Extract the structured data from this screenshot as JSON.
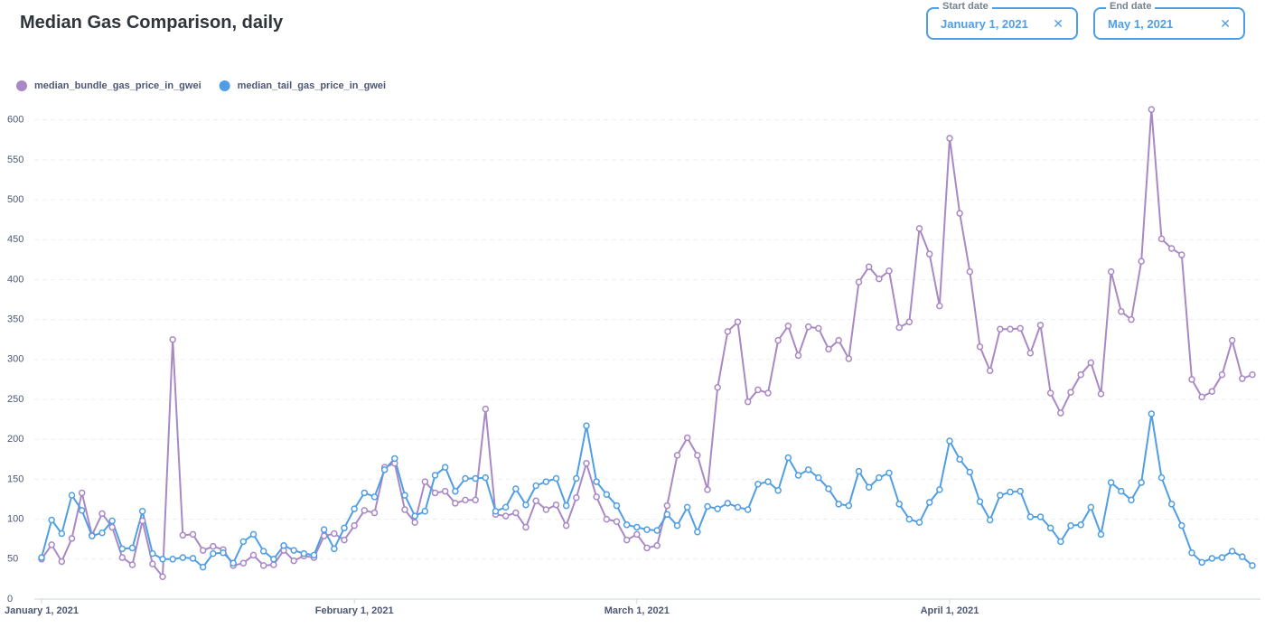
{
  "chart_data": {
    "type": "line",
    "title": "Median Gas Comparison, daily",
    "x": [
      "2021-01-01",
      "2021-01-02",
      "2021-01-03",
      "2021-01-04",
      "2021-01-05",
      "2021-01-06",
      "2021-01-07",
      "2021-01-08",
      "2021-01-09",
      "2021-01-10",
      "2021-01-11",
      "2021-01-12",
      "2021-01-13",
      "2021-01-14",
      "2021-01-15",
      "2021-01-16",
      "2021-01-17",
      "2021-01-18",
      "2021-01-19",
      "2021-01-20",
      "2021-01-21",
      "2021-01-22",
      "2021-01-23",
      "2021-01-24",
      "2021-01-25",
      "2021-01-26",
      "2021-01-27",
      "2021-01-28",
      "2021-01-29",
      "2021-01-30",
      "2021-01-31",
      "2021-02-01",
      "2021-02-02",
      "2021-02-03",
      "2021-02-04",
      "2021-02-05",
      "2021-02-06",
      "2021-02-07",
      "2021-02-08",
      "2021-02-09",
      "2021-02-10",
      "2021-02-11",
      "2021-02-12",
      "2021-02-13",
      "2021-02-14",
      "2021-02-15",
      "2021-02-16",
      "2021-02-17",
      "2021-02-18",
      "2021-02-19",
      "2021-02-20",
      "2021-02-21",
      "2021-02-22",
      "2021-02-23",
      "2021-02-24",
      "2021-02-25",
      "2021-02-26",
      "2021-02-27",
      "2021-02-28",
      "2021-03-01",
      "2021-03-02",
      "2021-03-03",
      "2021-03-04",
      "2021-03-05",
      "2021-03-06",
      "2021-03-07",
      "2021-03-08",
      "2021-03-09",
      "2021-03-10",
      "2021-03-11",
      "2021-03-12",
      "2021-03-13",
      "2021-03-14",
      "2021-03-15",
      "2021-03-16",
      "2021-03-17",
      "2021-03-18",
      "2021-03-19",
      "2021-03-20",
      "2021-03-21",
      "2021-03-22",
      "2021-03-23",
      "2021-03-24",
      "2021-03-25",
      "2021-03-26",
      "2021-03-27",
      "2021-03-28",
      "2021-03-29",
      "2021-03-30",
      "2021-03-31",
      "2021-04-01",
      "2021-04-02",
      "2021-04-03",
      "2021-04-04",
      "2021-04-05",
      "2021-04-06",
      "2021-04-07",
      "2021-04-08",
      "2021-04-09",
      "2021-04-10",
      "2021-04-11",
      "2021-04-12",
      "2021-04-13",
      "2021-04-14",
      "2021-04-15",
      "2021-04-16",
      "2021-04-17",
      "2021-04-18",
      "2021-04-19",
      "2021-04-20",
      "2021-04-21",
      "2021-04-22",
      "2021-04-23",
      "2021-04-24",
      "2021-04-25",
      "2021-04-26",
      "2021-04-27",
      "2021-04-28",
      "2021-04-29",
      "2021-04-30",
      "2021-05-01"
    ],
    "series": [
      {
        "name": "median_bundle_gas_price_in_gwei",
        "color": "#a989c5",
        "values": [
          50,
          68,
          47,
          76,
          133,
          80,
          107,
          90,
          52,
          43,
          98,
          44,
          28,
          325,
          80,
          81,
          61,
          66,
          62,
          42,
          45,
          55,
          42,
          43,
          61,
          48,
          54,
          52,
          79,
          82,
          74,
          92,
          111,
          108,
          165,
          170,
          112,
          96,
          147,
          133,
          135,
          120,
          124,
          124,
          238,
          106,
          104,
          108,
          90,
          123,
          112,
          118,
          92,
          127,
          170,
          128,
          100,
          97,
          74,
          81,
          64,
          67,
          117,
          180,
          202,
          180,
          137,
          265,
          335,
          347,
          247,
          262,
          258,
          324,
          342,
          305,
          341,
          339,
          313,
          324,
          301,
          397,
          416,
          401,
          411,
          340,
          347,
          464,
          432,
          367,
          577,
          483,
          410,
          316,
          286,
          338,
          338,
          339,
          308,
          343,
          258,
          233,
          259,
          281,
          296,
          257,
          410,
          360,
          350,
          423,
          613,
          451,
          439,
          431,
          275,
          253,
          260,
          281,
          324,
          276,
          281
        ]
      },
      {
        "name": "median_tail_gas_price_in_gwei",
        "color": "#509ee3",
        "values": [
          52,
          99,
          82,
          130,
          111,
          79,
          83,
          98,
          63,
          64,
          110,
          57,
          50,
          50,
          52,
          51,
          40,
          57,
          58,
          45,
          72,
          81,
          60,
          50,
          67,
          61,
          57,
          55,
          87,
          63,
          89,
          113,
          133,
          128,
          162,
          176,
          130,
          104,
          110,
          155,
          165,
          135,
          151,
          151,
          152,
          110,
          115,
          138,
          118,
          142,
          147,
          151,
          117,
          151,
          217,
          147,
          131,
          117,
          93,
          90,
          87,
          86,
          106,
          92,
          115,
          84,
          116,
          113,
          120,
          115,
          112,
          144,
          147,
          136,
          177,
          155,
          162,
          152,
          138,
          119,
          117,
          160,
          140,
          152,
          158,
          119,
          100,
          96,
          121,
          137,
          198,
          175,
          159,
          122,
          99,
          130,
          134,
          135,
          103,
          103,
          89,
          72,
          92,
          93,
          115,
          81,
          146,
          135,
          124,
          146,
          232,
          152,
          119,
          92,
          58,
          46,
          51,
          52,
          60,
          53,
          42
        ]
      }
    ],
    "xlim": [
      "2021-01-01",
      "2021-05-01"
    ],
    "xticks": [
      {
        "value": "2021-01-01",
        "label": "January 1, 2021"
      },
      {
        "value": "2021-02-01",
        "label": "February 1, 2021"
      },
      {
        "value": "2021-03-01",
        "label": "March 1, 2021"
      },
      {
        "value": "2021-04-01",
        "label": "April 1, 2021"
      }
    ],
    "ylim": [
      0,
      620
    ],
    "yticks": [
      0,
      50,
      100,
      150,
      200,
      250,
      300,
      350,
      400,
      450,
      500,
      550,
      600
    ],
    "grid": true
  },
  "filters": [
    {
      "label": "Start date",
      "value": "January 1, 2021"
    },
    {
      "label": "End date",
      "value": "May 1, 2021"
    }
  ]
}
